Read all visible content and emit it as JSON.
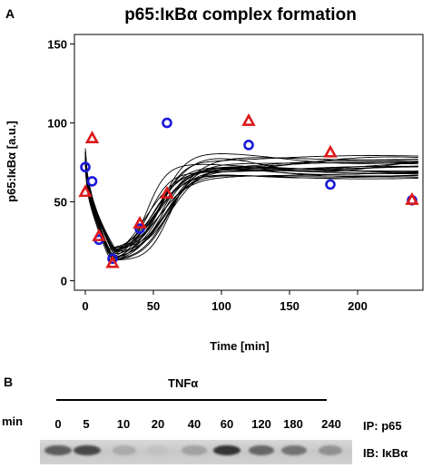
{
  "panel_a_label": "A",
  "panel_b_label": "B",
  "chart_data": {
    "type": "scatter",
    "title": "p65:IκBα complex formation",
    "xlabel": "Time [min]",
    "ylabel": "p65:IκBα [a.u.]",
    "xlim": [
      -8,
      248
    ],
    "ylim": [
      -6,
      156
    ],
    "xticks": [
      0,
      50,
      100,
      150,
      200
    ],
    "yticks": [
      0,
      50,
      100,
      150
    ],
    "grid": false,
    "series": [
      {
        "marker": "circle",
        "color": "#1a1adb",
        "x": [
          0,
          5,
          10,
          20,
          40,
          60,
          120,
          180,
          240
        ],
        "y": [
          72,
          63,
          26,
          14,
          33,
          100,
          86,
          61,
          51
        ]
      },
      {
        "marker": "triangle",
        "color": "#dd1a1a",
        "x": [
          0,
          5,
          10,
          20,
          40,
          60,
          120,
          180,
          240
        ],
        "y": [
          56,
          90,
          28,
          11,
          36,
          55,
          101,
          81,
          51
        ]
      }
    ],
    "curve_color": "#000000"
  },
  "blot": {
    "treatment": "TNFα",
    "min_label": "min",
    "lanes": [
      "0",
      "5",
      "10",
      "20",
      "40",
      "60",
      "120",
      "180",
      "240"
    ],
    "band_intensity": [
      0.72,
      0.82,
      0.28,
      0.08,
      0.35,
      0.9,
      0.68,
      0.62,
      0.45
    ],
    "ip_label": "IP: p65",
    "ib_label": "IB: IκBα"
  }
}
